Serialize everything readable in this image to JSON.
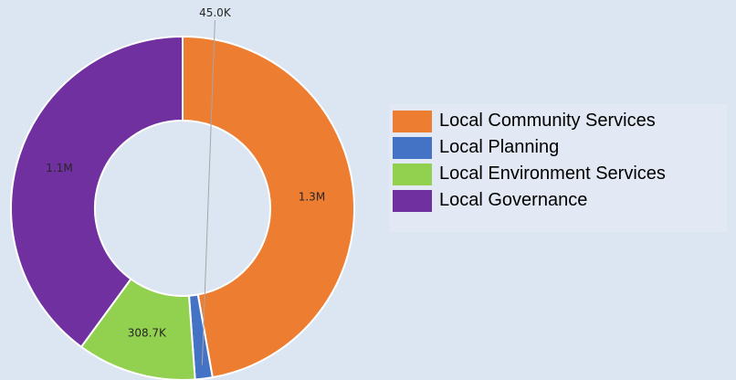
{
  "chart_data": {
    "type": "pie",
    "donut": true,
    "categories": [
      "Local Community Services",
      "Local Planning",
      "Local Environment Services",
      "Local Governance"
    ],
    "values": [
      1300000,
      45000,
      308700,
      1100000
    ],
    "data_labels": [
      "1.3M",
      "45.0K",
      "308.7K",
      "1.1M"
    ],
    "colors": [
      "#ed7d31",
      "#4472c4",
      "#92d050",
      "#7030a0"
    ],
    "legend_position": "right",
    "title": ""
  }
}
